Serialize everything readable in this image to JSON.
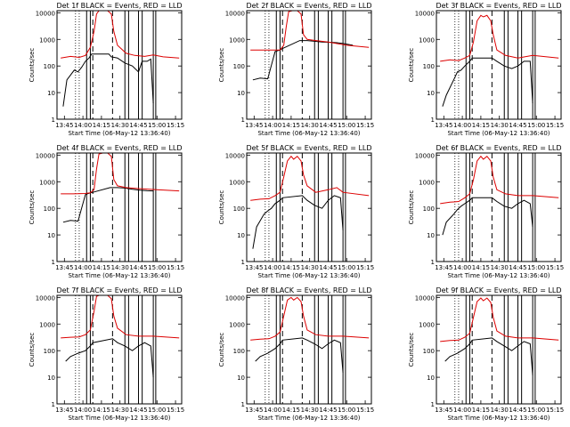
{
  "start_label": "Start Time (06-May-12 13:36:40)",
  "ylabel": "Counts/sec",
  "xticks": [
    "13:45",
    "14:00",
    "14:15",
    "14:30",
    "14:45",
    "15:00",
    "15:15"
  ],
  "yticks": [
    "1",
    "10",
    "100",
    "1000",
    "10000"
  ],
  "chart_data": [
    {
      "type": "line",
      "title": "Det 1f BLACK = Events, RED = LLD",
      "ylim": [
        1,
        12000
      ],
      "yscale": "log",
      "xlim": [
        "13:39",
        "15:20"
      ],
      "series": [
        {
          "name": "Events",
          "color": "#000000",
          "x": [
            "13:44",
            "13:47",
            "13:53",
            "13:56",
            "13:59",
            "14:02",
            "14:05",
            "14:07",
            "14:21",
            "14:23",
            "14:28",
            "14:34",
            "14:40",
            "14:45",
            "14:48",
            "14:52",
            "14:55",
            "14:57"
          ],
          "values": [
            3,
            30,
            70,
            60,
            90,
            150,
            200,
            280,
            280,
            220,
            200,
            130,
            100,
            60,
            150,
            150,
            180,
            4
          ]
        },
        {
          "name": "LLD",
          "color": "#dd0000",
          "x": [
            "13:42",
            "13:50",
            "13:57",
            "14:02",
            "14:06",
            "14:09",
            "14:11",
            "14:13",
            "14:16",
            "14:20",
            "14:23",
            "14:25",
            "14:28",
            "14:35",
            "14:42",
            "14:50",
            "14:57",
            "15:05",
            "15:18"
          ],
          "values": [
            200,
            230,
            210,
            250,
            500,
            2000,
            9000,
            12000,
            12000,
            12000,
            9000,
            2000,
            600,
            300,
            250,
            230,
            260,
            220,
            200
          ]
        }
      ]
    },
    {
      "type": "line",
      "title": "Det 2f BLACK = Events, RED = LLD",
      "ylim": [
        1,
        12000
      ],
      "yscale": "log",
      "xlim": [
        "13:39",
        "15:20"
      ],
      "series": [
        {
          "name": "Events",
          "color": "#000000",
          "x": [
            "13:44",
            "13:50",
            "13:56",
            "14:02",
            "14:06",
            "14:08",
            "14:22",
            "14:28",
            "14:34",
            "14:40",
            "14:46",
            "14:52",
            "14:57",
            "15:05"
          ],
          "values": [
            30,
            35,
            33,
            350,
            400,
            450,
            900,
            900,
            850,
            800,
            780,
            750,
            700,
            600
          ]
        },
        {
          "name": "LLD",
          "color": "#dd0000",
          "x": [
            "13:42",
            "13:52",
            "14:02",
            "14:06",
            "14:09",
            "14:11",
            "14:13",
            "14:16",
            "14:20",
            "14:23",
            "14:25",
            "14:28",
            "14:35",
            "14:45",
            "15:00",
            "15:18"
          ],
          "values": [
            400,
            400,
            400,
            400,
            600,
            3000,
            11000,
            12000,
            12000,
            9000,
            1500,
            1000,
            900,
            800,
            600,
            500
          ]
        }
      ]
    },
    {
      "type": "line",
      "title": "Det 3f BLACK = Events, RED = LLD",
      "ylim": [
        1,
        12000
      ],
      "yscale": "log",
      "xlim": [
        "13:39",
        "15:20"
      ],
      "series": [
        {
          "name": "Events",
          "color": "#000000",
          "x": [
            "13:44",
            "13:47",
            "13:53",
            "13:56",
            "13:59",
            "14:02",
            "14:06",
            "14:08",
            "14:24",
            "14:28",
            "14:34",
            "14:40",
            "14:45",
            "14:50",
            "14:55",
            "14:57"
          ],
          "values": [
            3,
            8,
            30,
            60,
            70,
            100,
            150,
            200,
            200,
            150,
            100,
            80,
            100,
            150,
            150,
            4
          ]
        },
        {
          "name": "LLD",
          "color": "#dd0000",
          "x": [
            "13:42",
            "13:50",
            "13:57",
            "14:02",
            "14:06",
            "14:09",
            "14:12",
            "14:15",
            "14:17",
            "14:20",
            "14:23",
            "14:25",
            "14:28",
            "14:35",
            "14:45",
            "14:57",
            "15:18"
          ],
          "values": [
            150,
            170,
            160,
            200,
            250,
            800,
            5000,
            8000,
            7000,
            8000,
            5000,
            1500,
            400,
            250,
            200,
            250,
            200
          ]
        }
      ]
    },
    {
      "type": "line",
      "title": "Det 4f BLACK = Events, RED = LLD",
      "ylim": [
        1,
        12000
      ],
      "yscale": "log",
      "xlim": [
        "13:39",
        "15:20"
      ],
      "series": [
        {
          "name": "Events",
          "color": "#000000",
          "x": [
            "13:44",
            "13:50",
            "13:56",
            "14:02",
            "14:06",
            "14:08",
            "14:22",
            "14:28",
            "14:34",
            "14:40",
            "14:46",
            "14:52",
            "14:57"
          ],
          "values": [
            30,
            35,
            33,
            330,
            380,
            400,
            600,
            600,
            580,
            520,
            480,
            460,
            450
          ]
        },
        {
          "name": "LLD",
          "color": "#dd0000",
          "x": [
            "13:42",
            "13:52",
            "14:02",
            "14:06",
            "14:09",
            "14:11",
            "14:13",
            "14:16",
            "14:20",
            "14:23",
            "14:25",
            "14:28",
            "14:35",
            "14:45",
            "15:00",
            "15:18"
          ],
          "values": [
            350,
            350,
            360,
            380,
            500,
            3000,
            11000,
            12000,
            12000,
            9000,
            1200,
            700,
            600,
            550,
            500,
            450
          ]
        }
      ]
    },
    {
      "type": "line",
      "title": "Det 5f BLACK = Events, RED = LLD",
      "ylim": [
        1,
        12000
      ],
      "yscale": "log",
      "xlim": [
        "13:39",
        "15:20"
      ],
      "series": [
        {
          "name": "Events",
          "color": "#000000",
          "x": [
            "13:44",
            "13:47",
            "13:53",
            "13:56",
            "13:59",
            "14:02",
            "14:06",
            "14:08",
            "14:24",
            "14:28",
            "14:34",
            "14:40",
            "14:45",
            "14:50",
            "14:55",
            "14:57"
          ],
          "values": [
            3,
            20,
            60,
            80,
            100,
            150,
            200,
            250,
            300,
            200,
            130,
            100,
            200,
            300,
            250,
            15
          ]
        },
        {
          "name": "LLD",
          "color": "#dd0000",
          "x": [
            "13:42",
            "13:50",
            "13:57",
            "14:02",
            "14:06",
            "14:09",
            "14:12",
            "14:15",
            "14:17",
            "14:20",
            "14:23",
            "14:25",
            "14:28",
            "14:35",
            "14:45",
            "14:52",
            "14:57",
            "15:18"
          ],
          "values": [
            200,
            220,
            230,
            300,
            400,
            1500,
            6000,
            9000,
            7000,
            9000,
            6000,
            1800,
            700,
            400,
            500,
            600,
            400,
            300
          ]
        }
      ]
    },
    {
      "type": "line",
      "title": "Det 6f BLACK = Events, RED = LLD",
      "ylim": [
        1,
        12000
      ],
      "yscale": "log",
      "xlim": [
        "13:39",
        "15:20"
      ],
      "series": [
        {
          "name": "Events",
          "color": "#000000",
          "x": [
            "13:44",
            "13:47",
            "13:53",
            "13:56",
            "13:59",
            "14:02",
            "14:06",
            "14:08",
            "14:24",
            "14:28",
            "14:34",
            "14:40",
            "14:45",
            "14:50",
            "14:55",
            "14:57"
          ],
          "values": [
            10,
            30,
            60,
            90,
            120,
            150,
            200,
            250,
            250,
            180,
            120,
            100,
            150,
            200,
            150,
            20
          ]
        },
        {
          "name": "LLD",
          "color": "#dd0000",
          "x": [
            "13:42",
            "13:50",
            "13:57",
            "14:02",
            "14:06",
            "14:09",
            "14:12",
            "14:15",
            "14:17",
            "14:20",
            "14:23",
            "14:25",
            "14:28",
            "14:35",
            "14:45",
            "14:57",
            "15:18"
          ],
          "values": [
            150,
            170,
            180,
            250,
            350,
            1200,
            6000,
            9000,
            7000,
            9000,
            6000,
            1500,
            500,
            350,
            300,
            300,
            250
          ]
        }
      ]
    },
    {
      "type": "line",
      "title": "Det 7f BLACK = Events, RED = LLD",
      "ylim": [
        1,
        12000
      ],
      "yscale": "log",
      "xlim": [
        "13:39",
        "15:20"
      ],
      "series": [
        {
          "name": "Events",
          "color": "#000000",
          "x": [
            "13:46",
            "13:50",
            "13:56",
            "14:02",
            "14:06",
            "14:08",
            "14:24",
            "14:28",
            "14:34",
            "14:40",
            "14:45",
            "14:50",
            "14:55",
            "14:57"
          ],
          "values": [
            40,
            60,
            80,
            100,
            150,
            200,
            280,
            200,
            150,
            100,
            150,
            200,
            150,
            10
          ]
        },
        {
          "name": "LLD",
          "color": "#dd0000",
          "x": [
            "13:42",
            "13:50",
            "13:57",
            "14:02",
            "14:06",
            "14:09",
            "14:11",
            "14:13",
            "14:16",
            "14:20",
            "14:23",
            "14:25",
            "14:28",
            "14:35",
            "14:45",
            "14:57",
            "15:18"
          ],
          "values": [
            300,
            320,
            330,
            400,
            600,
            3000,
            11000,
            12000,
            12000,
            12000,
            9000,
            2000,
            700,
            400,
            350,
            350,
            300
          ]
        }
      ]
    },
    {
      "type": "line",
      "title": "Det 8f BLACK = Events, RED = LLD",
      "ylim": [
        1,
        12000
      ],
      "yscale": "log",
      "xlim": [
        "13:39",
        "15:20"
      ],
      "series": [
        {
          "name": "Events",
          "color": "#000000",
          "x": [
            "13:46",
            "13:50",
            "13:56",
            "14:02",
            "14:06",
            "14:08",
            "14:24",
            "14:28",
            "14:34",
            "14:40",
            "14:45",
            "14:50",
            "14:55",
            "14:57"
          ],
          "values": [
            40,
            60,
            80,
            120,
            180,
            250,
            300,
            250,
            180,
            120,
            180,
            250,
            200,
            15
          ]
        },
        {
          "name": "LLD",
          "color": "#dd0000",
          "x": [
            "13:42",
            "13:50",
            "13:57",
            "14:02",
            "14:06",
            "14:09",
            "14:12",
            "14:15",
            "14:17",
            "14:20",
            "14:23",
            "14:25",
            "14:28",
            "14:35",
            "14:45",
            "14:57",
            "15:18"
          ],
          "values": [
            250,
            270,
            280,
            350,
            500,
            2000,
            8000,
            10000,
            8000,
            10000,
            7000,
            2000,
            600,
            400,
            350,
            350,
            300
          ]
        }
      ]
    },
    {
      "type": "line",
      "title": "Det 9f BLACK = Events, RED = LLD",
      "ylim": [
        1,
        12000
      ],
      "yscale": "log",
      "xlim": [
        "13:39",
        "15:20"
      ],
      "series": [
        {
          "name": "Events",
          "color": "#000000",
          "x": [
            "13:46",
            "13:50",
            "13:56",
            "14:02",
            "14:06",
            "14:08",
            "14:24",
            "14:28",
            "14:34",
            "14:40",
            "14:45",
            "14:50",
            "14:55",
            "14:57"
          ],
          "values": [
            40,
            60,
            80,
            120,
            180,
            250,
            300,
            220,
            150,
            100,
            150,
            220,
            180,
            12
          ]
        },
        {
          "name": "LLD",
          "color": "#dd0000",
          "x": [
            "13:42",
            "13:50",
            "13:57",
            "14:02",
            "14:06",
            "14:09",
            "14:12",
            "14:15",
            "14:17",
            "14:20",
            "14:23",
            "14:25",
            "14:28",
            "14:35",
            "14:45",
            "14:57",
            "15:18"
          ],
          "values": [
            220,
            240,
            250,
            320,
            450,
            1800,
            7000,
            9500,
            7500,
            9500,
            6500,
            1800,
            550,
            350,
            300,
            300,
            250
          ]
        }
      ]
    }
  ]
}
